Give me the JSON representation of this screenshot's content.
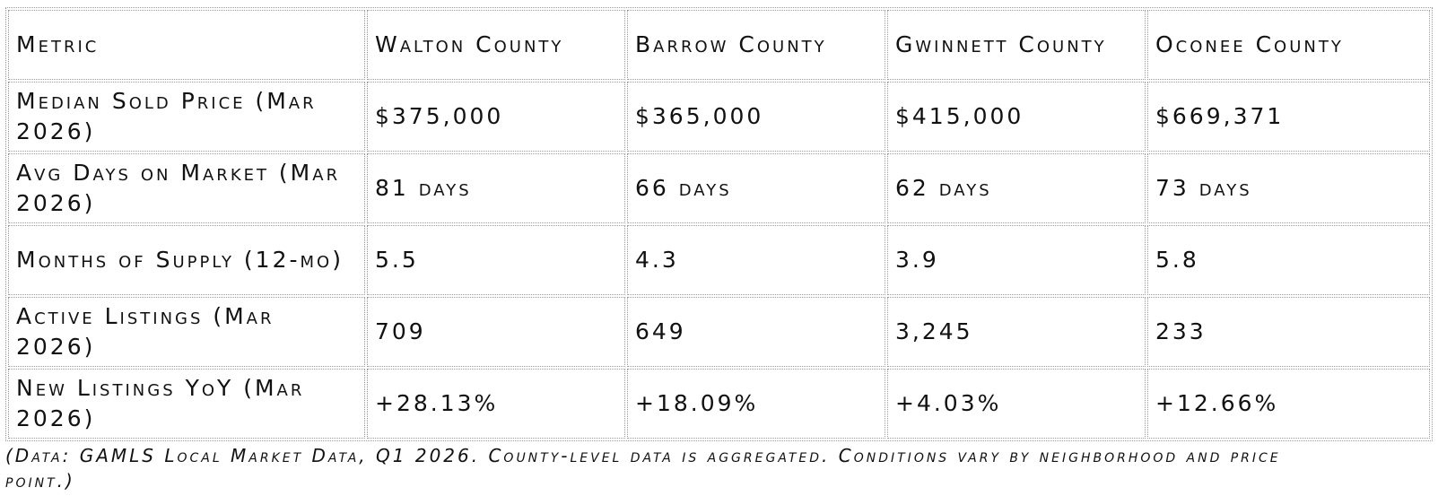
{
  "table": {
    "headers": [
      "Metric",
      "Walton County",
      "Barrow County",
      "Gwinnett County",
      "Oconee County"
    ],
    "rows": [
      [
        "Median Sold Price (Mar 2026)",
        "$375,000",
        "$365,000",
        "$415,000",
        "$669,371"
      ],
      [
        "Avg Days on Market (Mar 2026)",
        "81 days",
        "66 days",
        "62 days",
        "73 days"
      ],
      [
        "Months of Supply (12-mo)",
        "5.5",
        "4.3",
        "3.9",
        "5.8"
      ],
      [
        "Active Listings (Mar 2026)",
        "709",
        "649",
        "3,245",
        "233"
      ],
      [
        "New Listings YoY (Mar 2026)",
        "+28.13%",
        "+18.09%",
        "+4.03%",
        "+12.66%"
      ]
    ]
  },
  "caption": "(Data: GAMLS Local Market Data, Q1 2026. County-level data is aggregated. Conditions vary by neighborhood and price point.)"
}
